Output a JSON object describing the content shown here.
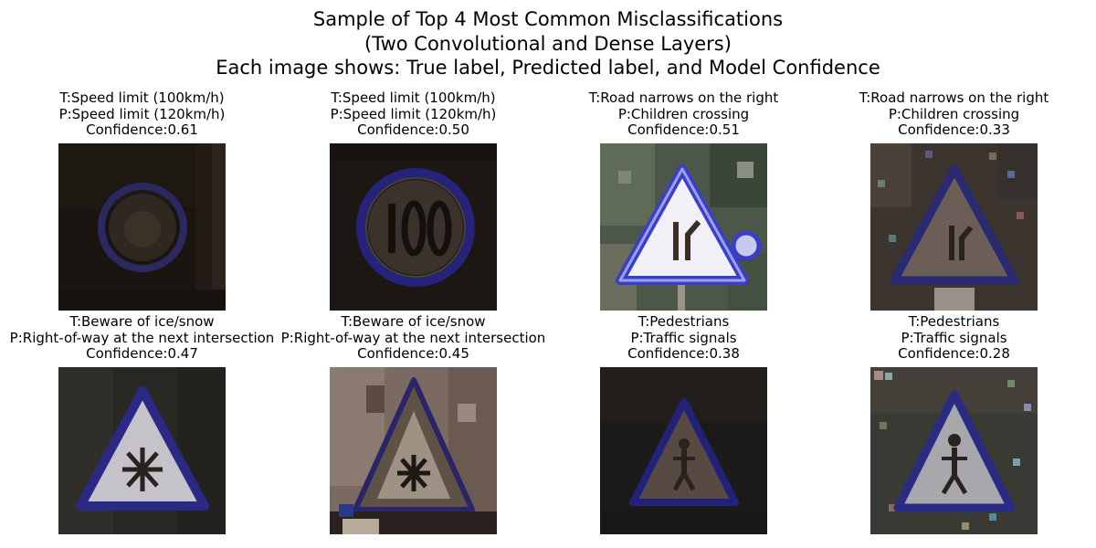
{
  "figure": {
    "title_lines": [
      "Sample of Top 4 Most Common Misclassifications",
      "(Two Convolutional and Dense Layers)",
      "Each image shows: True label, Predicted label, and Model Confidence"
    ]
  },
  "panels": [
    {
      "true_label": "T:Speed limit (100km/h)",
      "predicted_label": "P:Speed limit (120km/h)",
      "confidence": "Confidence:0.61",
      "image": {
        "kind": "speed-limit-sign",
        "sign_text": "",
        "background": "#1c1612",
        "ring_color": "#2e2a66",
        "face_color": "#322a20",
        "visibility": "dark"
      }
    },
    {
      "true_label": "T:Speed limit (100km/h)",
      "predicted_label": "P:Speed limit (120km/h)",
      "confidence": "Confidence:0.50",
      "image": {
        "kind": "speed-limit-sign",
        "sign_text": "100",
        "background": "#1e1814",
        "ring_color": "#25247a",
        "face_color": "#3a322a",
        "visibility": "dim"
      }
    },
    {
      "true_label": "T:Road narrows on the right",
      "predicted_label": "P:Children crossing",
      "confidence": "Confidence:0.51",
      "image": {
        "kind": "road-narrows-sign",
        "background": "#4a5548",
        "border_color": "#3a3ec8",
        "face_color": "#f2f2f6",
        "visibility": "bright"
      }
    },
    {
      "true_label": "T:Road narrows on the right",
      "predicted_label": "P:Children crossing",
      "confidence": "Confidence:0.33",
      "image": {
        "kind": "road-narrows-sign",
        "background": "#3e3630",
        "border_color": "#2a2a72",
        "face_color": "#6a5e58",
        "visibility": "dim"
      }
    },
    {
      "true_label": "T:Beware of ice/snow",
      "predicted_label": "P:Right-of-way at the next intersection",
      "confidence": "Confidence:0.47",
      "image": {
        "kind": "ice-snow-sign",
        "background": "#2a2824",
        "border_color": "#2a2a86",
        "face_color": "#c8c4cc",
        "visibility": "medium"
      }
    },
    {
      "true_label": "T:Beware of ice/snow",
      "predicted_label": "P:Right-of-way at the next intersection",
      "confidence": "Confidence:0.45",
      "image": {
        "kind": "ice-snow-sign",
        "background": "#7a6a62",
        "border_color": "#2a2468",
        "face_color": "#9a8e80",
        "visibility": "medium"
      }
    },
    {
      "true_label": "T:Pedestrians",
      "predicted_label": "P:Traffic signals",
      "confidence": "Confidence:0.38",
      "image": {
        "kind": "pedestrians-sign",
        "background": "#1c1a18",
        "border_color": "#22227a",
        "face_color": "#5a4e44",
        "visibility": "dark"
      }
    },
    {
      "true_label": "T:Pedestrians",
      "predicted_label": "P:Traffic signals",
      "confidence": "Confidence:0.28",
      "image": {
        "kind": "pedestrians-sign",
        "background": "#3a3a34",
        "border_color": "#2a2c84",
        "face_color": "#a8a8ac",
        "visibility": "noisy"
      }
    }
  ]
}
